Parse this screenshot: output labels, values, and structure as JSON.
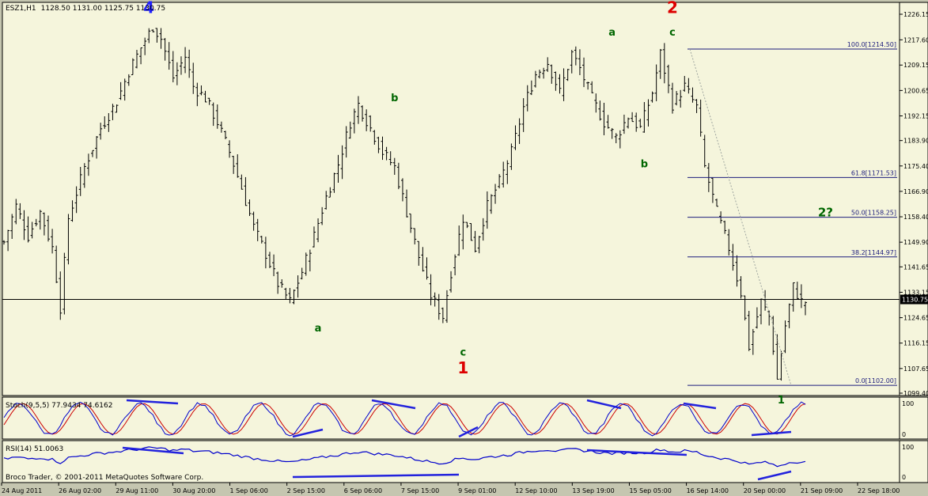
{
  "header": {
    "symbol": "ESZ1,H1",
    "ohlc": "1128.50 1131.00 1125.75 1130.75"
  },
  "colors": {
    "bg": "#f5f5dc",
    "outer": "#c5c6b0",
    "bars": "#000000",
    "fib": "#1c1c7c",
    "stochMain": "#0000cc",
    "stochSignal": "#cc0000",
    "rsi": "#0000cc",
    "trend": "#2222dd",
    "waveBlue": "#2020ff",
    "waveRed": "#dd0000",
    "waveGreen": "#006600"
  },
  "chart_data": {
    "type": "ohlc",
    "price_axis": {
      "labels": [
        "1226.15",
        "1217.60",
        "1209.15",
        "1200.65",
        "1192.15",
        "1183.90",
        "1175.40",
        "1166.90",
        "1158.40",
        "1149.90",
        "1141.65",
        "1133.15",
        "1124.65",
        "1116.15",
        "1107.65",
        "1099.40"
      ],
      "min": 1099.4,
      "max": 1226.15
    },
    "current_price": "1130.75",
    "time_labels": [
      "24 Aug 2011",
      "26 Aug 02:00",
      "29 Aug 11:00",
      "30 Aug 20:00",
      "1 Sep 06:00",
      "2 Sep 15:00",
      "6 Sep 06:00",
      "7 Sep 15:00",
      "9 Sep 01:00",
      "12 Sep 10:00",
      "13 Sep 19:00",
      "15 Sep 05:00",
      "16 Sep 14:00",
      "20 Sep 00:00",
      "21 Sep 09:00",
      "22 Sep 18:00"
    ],
    "swing_path_comment": "approximate hourly swing anchors [bar index, price]",
    "swings": [
      [
        0,
        1150
      ],
      [
        3,
        1162
      ],
      [
        6,
        1152
      ],
      [
        9,
        1160
      ],
      [
        12,
        1148
      ],
      [
        14,
        1128
      ],
      [
        16,
        1158
      ],
      [
        20,
        1175
      ],
      [
        24,
        1188
      ],
      [
        28,
        1197
      ],
      [
        31,
        1207
      ],
      [
        34,
        1215
      ],
      [
        37,
        1222
      ],
      [
        39,
        1218
      ],
      [
        42,
        1205
      ],
      [
        45,
        1212
      ],
      [
        47,
        1202
      ],
      [
        50,
        1198
      ],
      [
        53,
        1190
      ],
      [
        56,
        1180
      ],
      [
        59,
        1168
      ],
      [
        62,
        1155
      ],
      [
        65,
        1146
      ],
      [
        68,
        1136
      ],
      [
        71,
        1130
      ],
      [
        74,
        1140
      ],
      [
        77,
        1152
      ],
      [
        80,
        1165
      ],
      [
        83,
        1176
      ],
      [
        86,
        1190
      ],
      [
        88,
        1196
      ],
      [
        91,
        1188
      ],
      [
        94,
        1180
      ],
      [
        97,
        1175
      ],
      [
        100,
        1160
      ],
      [
        103,
        1145
      ],
      [
        106,
        1132
      ],
      [
        109,
        1125
      ],
      [
        111,
        1140
      ],
      [
        114,
        1158
      ],
      [
        117,
        1148
      ],
      [
        120,
        1162
      ],
      [
        123,
        1170
      ],
      [
        126,
        1180
      ],
      [
        129,
        1195
      ],
      [
        132,
        1206
      ],
      [
        135,
        1210
      ],
      [
        138,
        1200
      ],
      [
        141,
        1213
      ],
      [
        143,
        1208
      ],
      [
        146,
        1198
      ],
      [
        149,
        1190
      ],
      [
        152,
        1185
      ],
      [
        155,
        1192
      ],
      [
        158,
        1188
      ],
      [
        161,
        1200
      ],
      [
        163,
        1213
      ],
      [
        166,
        1196
      ],
      [
        169,
        1202
      ],
      [
        172,
        1195
      ],
      [
        174,
        1175
      ],
      [
        177,
        1160
      ],
      [
        180,
        1148
      ],
      [
        183,
        1133
      ],
      [
        185,
        1115
      ],
      [
        188,
        1130
      ],
      [
        190,
        1125
      ],
      [
        192,
        1104
      ],
      [
        194,
        1122
      ],
      [
        196,
        1135
      ],
      [
        198,
        1130
      ]
    ],
    "fib_levels": [
      {
        "label": "100.0[1214.50]",
        "price": 1214.5
      },
      {
        "label": "61.8[1171.53]",
        "price": 1171.53
      },
      {
        "label": "50.0[1158.25]",
        "price": 1158.25
      },
      {
        "label": "38.2[1144.97]",
        "price": 1144.97
      },
      {
        "label": "0.0[1102.00]",
        "price": 1102.0
      }
    ],
    "wave_labels": [
      {
        "text": "4",
        "color": "blue",
        "bar": 36,
        "price": 1226.5,
        "size": "big"
      },
      {
        "text": "2",
        "color": "red",
        "bar": 166,
        "price": 1226.5,
        "size": "big"
      },
      {
        "text": "a",
        "color": "green",
        "bar": 151,
        "price": 1219,
        "size": "small"
      },
      {
        "text": "c",
        "color": "green",
        "bar": 166,
        "price": 1219,
        "size": "small"
      },
      {
        "text": "b",
        "color": "green",
        "bar": 97,
        "price": 1197,
        "size": "small"
      },
      {
        "text": "b",
        "color": "green",
        "bar": 159,
        "price": 1175,
        "size": "small"
      },
      {
        "text": "2?",
        "color": "green",
        "bar": 204,
        "price": 1158.5,
        "size": "mid"
      },
      {
        "text": "a",
        "color": "green",
        "bar": 78,
        "price": 1120,
        "size": "small"
      },
      {
        "text": "c",
        "color": "green",
        "bar": 114,
        "price": 1112,
        "size": "small"
      },
      {
        "text": "1",
        "color": "red",
        "bar": 114,
        "price": 1106,
        "size": "big"
      },
      {
        "text": "1",
        "color": "green",
        "bar": 193,
        "price": 1096,
        "size": "small"
      }
    ],
    "stochastic": {
      "label": "Stoch(9,5,5) 77.9434 74.6162",
      "axis": [
        "100",
        "0"
      ]
    },
    "rsi": {
      "label": "RSI(14) 51.0063",
      "axis": [
        "100",
        "0"
      ]
    },
    "copyright": "Broco Trader, © 2001-2011 MetaQuotes Software Corp."
  }
}
